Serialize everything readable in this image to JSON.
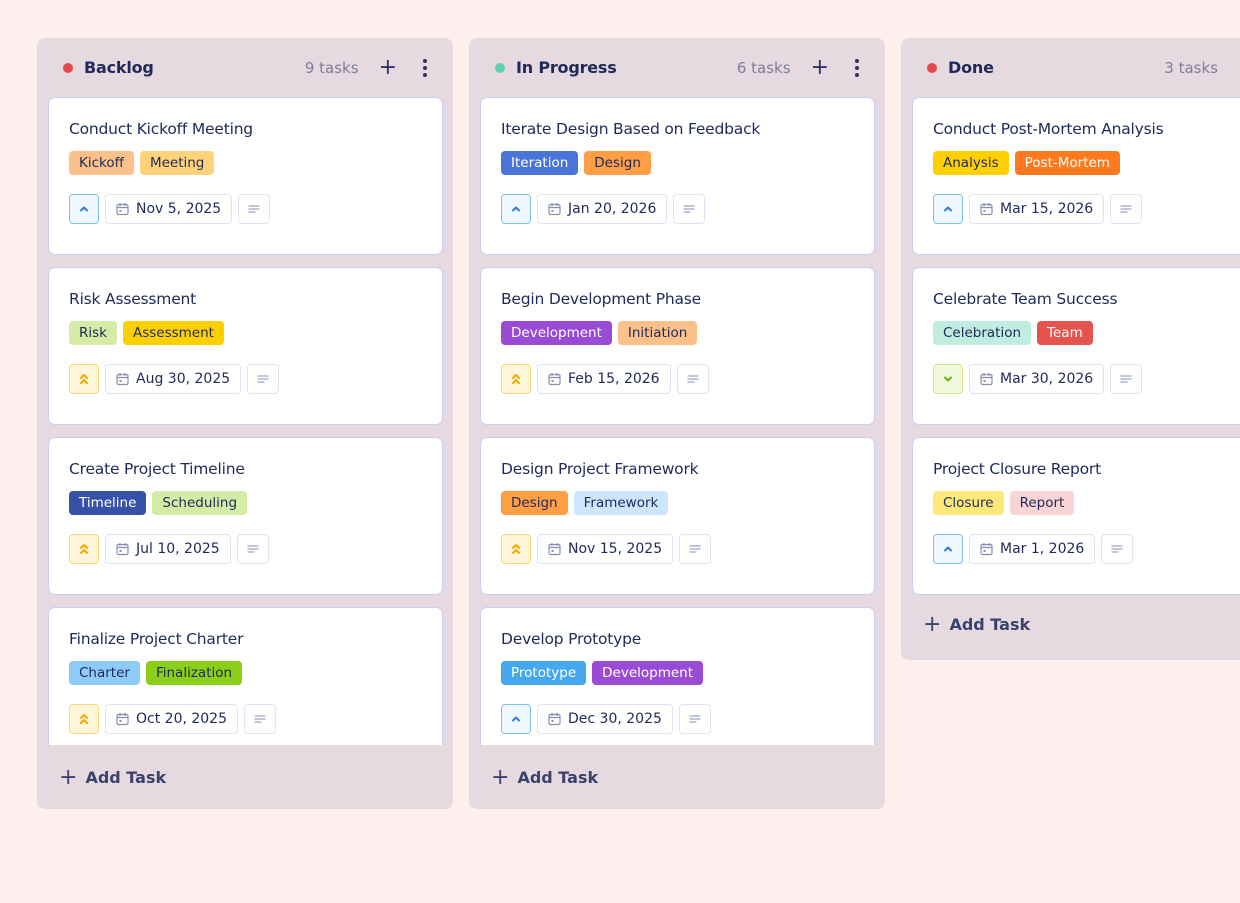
{
  "board": {
    "add_task_label": "Add Task",
    "columns": [
      {
        "title": "Backlog",
        "count": "9 tasks",
        "dot_color": "#e5484d",
        "show_menu": true,
        "cards": [
          {
            "title": "Conduct Kickoff Meeting",
            "tags": [
              {
                "label": "Kickoff",
                "bg": "#fcc18b",
                "fg": "#1f2a5a"
              },
              {
                "label": "Meeting",
                "bg": "#ffd37a",
                "fg": "#1f2a5a"
              }
            ],
            "priority": "medium",
            "date": "Nov 5, 2025"
          },
          {
            "title": "Risk Assessment",
            "tags": [
              {
                "label": "Risk",
                "bg": "#d4eca6",
                "fg": "#1f2a5a"
              },
              {
                "label": "Assessment",
                "bg": "#ffd000",
                "fg": "#1f2a5a"
              }
            ],
            "priority": "high",
            "date": "Aug 30, 2025"
          },
          {
            "title": "Create Project Timeline",
            "tags": [
              {
                "label": "Timeline",
                "bg": "#3751a8",
                "fg": "#ffffff"
              },
              {
                "label": "Scheduling",
                "bg": "#d4eca6",
                "fg": "#1f2a5a"
              }
            ],
            "priority": "high",
            "date": "Jul 10, 2025"
          },
          {
            "title": "Finalize Project Charter",
            "tags": [
              {
                "label": "Charter",
                "bg": "#8fcbf7",
                "fg": "#1f2a5a"
              },
              {
                "label": "Finalization",
                "bg": "#8ccf1a",
                "fg": "#1f2a5a"
              }
            ],
            "priority": "high",
            "date": "Oct 20, 2025"
          }
        ]
      },
      {
        "title": "In Progress",
        "count": "6 tasks",
        "dot_color": "#5fd1b0",
        "show_menu": true,
        "cards": [
          {
            "title": "Iterate Design Based on Feedback",
            "tags": [
              {
                "label": "Iteration",
                "bg": "#4a74d8",
                "fg": "#ffffff"
              },
              {
                "label": "Design",
                "bg": "#ff9e45",
                "fg": "#1f2a5a"
              }
            ],
            "priority": "medium",
            "date": "Jan 20, 2026"
          },
          {
            "title": "Begin Development Phase",
            "tags": [
              {
                "label": "Development",
                "bg": "#9a4bd6",
                "fg": "#ffffff"
              },
              {
                "label": "Initiation",
                "bg": "#fcc18b",
                "fg": "#1f2a5a"
              }
            ],
            "priority": "high",
            "date": "Feb 15, 2026"
          },
          {
            "title": "Design Project Framework",
            "tags": [
              {
                "label": "Design",
                "bg": "#ff9e45",
                "fg": "#1f2a5a"
              },
              {
                "label": "Framework",
                "bg": "#cde6fb",
                "fg": "#1f2a5a"
              }
            ],
            "priority": "high",
            "date": "Nov 15, 2025"
          },
          {
            "title": "Develop Prototype",
            "tags": [
              {
                "label": "Prototype",
                "bg": "#44a8ee",
                "fg": "#ffffff"
              },
              {
                "label": "Development",
                "bg": "#9a4bd6",
                "fg": "#ffffff"
              }
            ],
            "priority": "medium",
            "date": "Dec 30, 2025"
          }
        ]
      },
      {
        "title": "Done",
        "count": "3 tasks",
        "dot_color": "#e5484d",
        "show_menu": false,
        "cards": [
          {
            "title": "Conduct Post-Mortem Analysis",
            "tags": [
              {
                "label": "Analysis",
                "bg": "#ffd000",
                "fg": "#1f2a5a"
              },
              {
                "label": "Post-Mortem",
                "bg": "#ff7a1f",
                "fg": "#ffffff"
              }
            ],
            "priority": "medium",
            "date": "Mar 15, 2026"
          },
          {
            "title": "Celebrate Team Success",
            "tags": [
              {
                "label": "Celebration",
                "bg": "#bfede0",
                "fg": "#1f2a5a"
              },
              {
                "label": "Team",
                "bg": "#e5534f",
                "fg": "#ffffff"
              }
            ],
            "priority": "low",
            "date": "Mar 30, 2026"
          },
          {
            "title": "Project Closure Report",
            "tags": [
              {
                "label": "Closure",
                "bg": "#fde97a",
                "fg": "#1f2a5a"
              },
              {
                "label": "Report",
                "bg": "#f9d4d4",
                "fg": "#1f2a5a"
              }
            ],
            "priority": "medium",
            "date": "Mar 1, 2026"
          }
        ]
      }
    ]
  },
  "priority_styles": {
    "medium": {
      "icon": "chevron-up-icon",
      "bg": "#eef6ff",
      "border": "#7cc3f5",
      "color": "#2f7fd6"
    },
    "high": {
      "icon": "double-chevron-up-icon",
      "bg": "#fff6d9",
      "border": "#f7d77a",
      "color": "#f2a900"
    },
    "low": {
      "icon": "chevron-down-icon",
      "bg": "#f1f9dc",
      "border": "#cbe98a",
      "color": "#6fae10"
    }
  }
}
